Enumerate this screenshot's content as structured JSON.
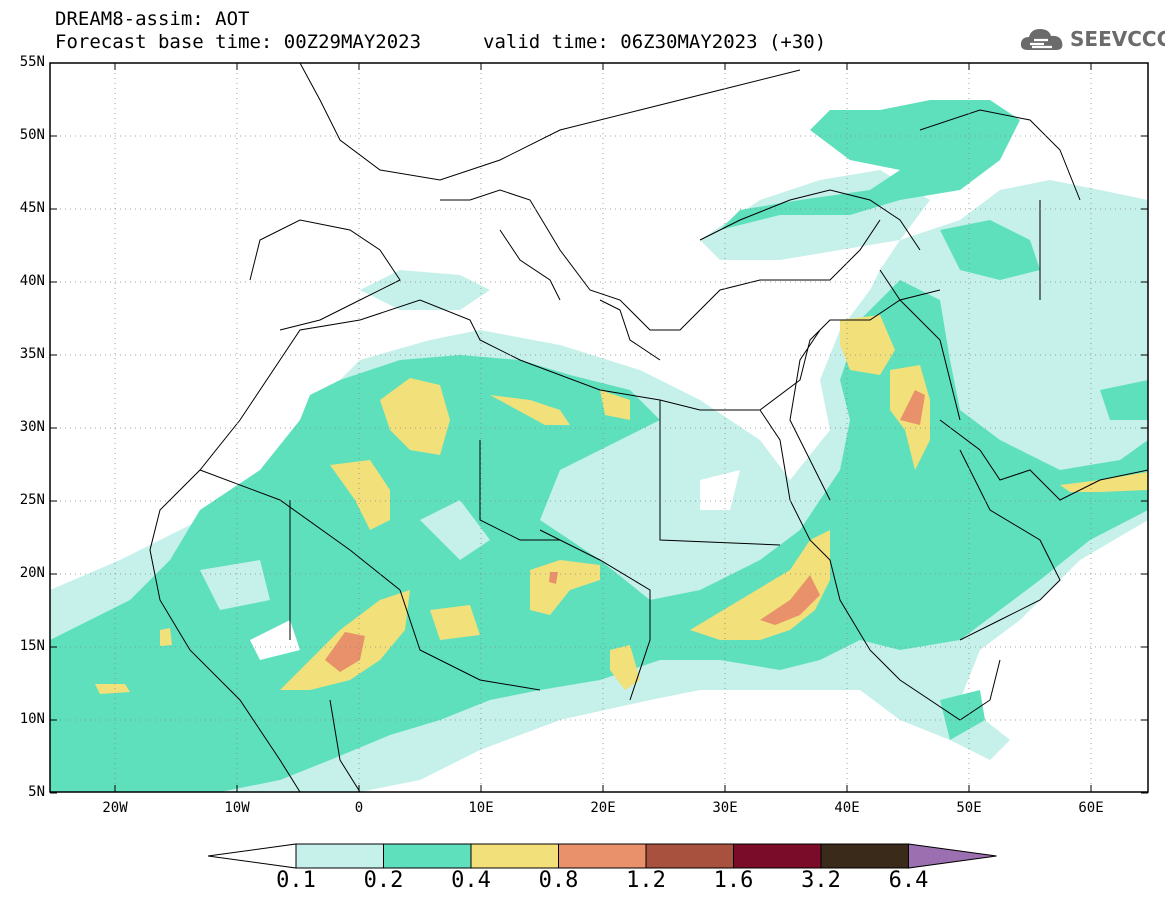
{
  "title": {
    "line1": "DREAM8-assim: AOT",
    "line2": "Forecast base time: 00Z29MAY2023",
    "valid": "valid time: 06Z30MAY2023 (+30)"
  },
  "logo": {
    "text": "SEEVCCC",
    "icon": "cloud-icon"
  },
  "axes": {
    "lat_labels": [
      "55N",
      "50N",
      "45N",
      "40N",
      "35N",
      "30N",
      "25N",
      "20N",
      "15N",
      "10N",
      "5N"
    ],
    "lon_labels": [
      "20W",
      "10W",
      "0",
      "10E",
      "20E",
      "30E",
      "40E",
      "50E",
      "60E"
    ],
    "lon_range": [
      -25,
      65
    ],
    "lat_range": [
      5,
      55
    ]
  },
  "colorbar": {
    "labels": [
      "0.1",
      "0.2",
      "0.4",
      "0.8",
      "1.2",
      "1.6",
      "3.2",
      "6.4"
    ],
    "colors": [
      "#ffffff",
      "#c6f0ea",
      "#5ee0bd",
      "#f2e07a",
      "#e8916a",
      "#a8513e",
      "#7a0c2a",
      "#3a2a1a",
      "#9b6fb0"
    ]
  },
  "map": {
    "dust_color_low": "#c6f0ea",
    "dust_color_mid": "#5ee0bd",
    "dust_color_high": "#f2e07a",
    "dust_color_peak": "#e8916a"
  }
}
